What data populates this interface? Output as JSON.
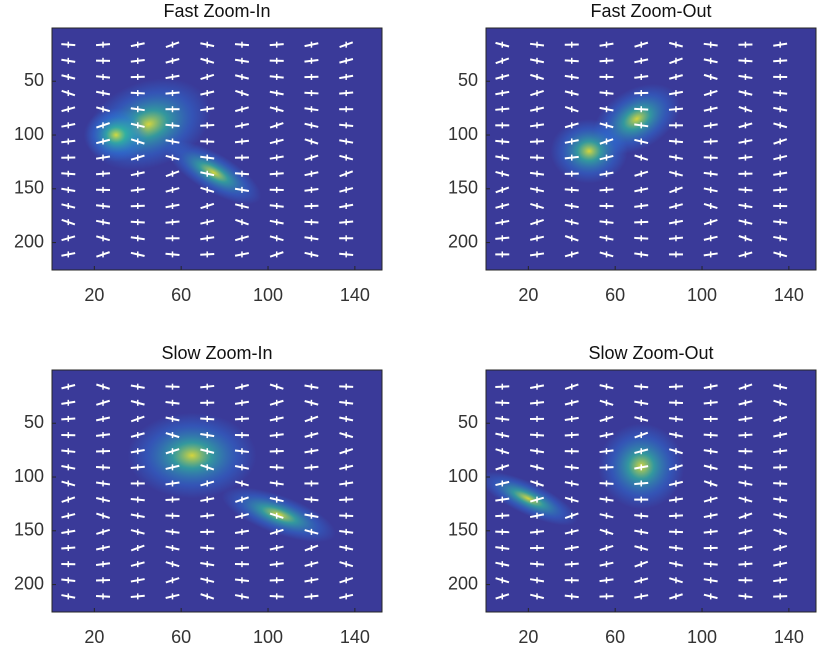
{
  "chart_data": [
    {
      "type": "heatmap",
      "title": "Fast Zoom-In",
      "xlim": [
        0.5,
        152.5
      ],
      "ylim": [
        0.5,
        225.5
      ],
      "y_reversed": true,
      "xticks": [
        20,
        60,
        100,
        140
      ],
      "yticks": [
        50,
        100,
        150,
        200
      ],
      "color": "#3a3a99"
    },
    {
      "type": "heatmap",
      "title": "Fast Zoom-Out",
      "xlim": [
        0.5,
        152.5
      ],
      "ylim": [
        0.5,
        225.5
      ],
      "y_reversed": true,
      "xticks": [
        20,
        60,
        100,
        140
      ],
      "yticks": [
        50,
        100,
        150,
        200
      ],
      "color": "#3a3a99"
    },
    {
      "type": "heatmap",
      "title": "Slow Zoom-In",
      "xlim": [
        0.5,
        152.5
      ],
      "ylim": [
        0.5,
        225.5
      ],
      "y_reversed": true,
      "xticks": [
        20,
        60,
        100,
        140
      ],
      "yticks": [
        50,
        100,
        150,
        200
      ],
      "color": "#3a3a99"
    },
    {
      "type": "heatmap",
      "title": "Slow Zoom-Out",
      "xlim": [
        0.5,
        152.5
      ],
      "ylim": [
        0.5,
        225.5
      ],
      "y_reversed": true,
      "xticks": [
        20,
        60,
        100,
        140
      ],
      "yticks": [
        50,
        100,
        150,
        200
      ],
      "color": "#3a3a99"
    }
  ]
}
